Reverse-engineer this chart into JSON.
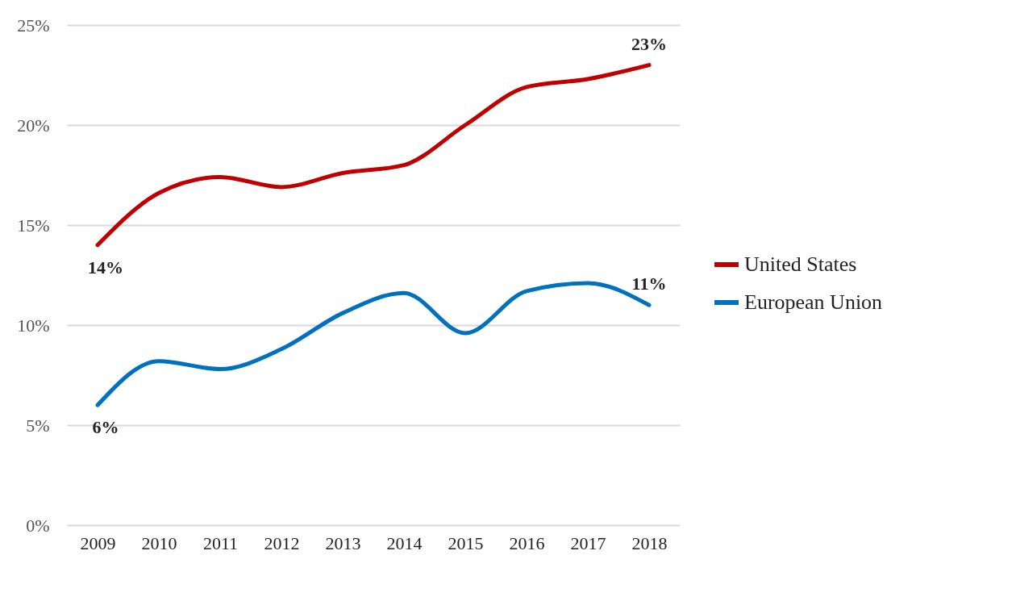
{
  "chart_data": {
    "type": "line",
    "categories": [
      "2009",
      "2010",
      "2011",
      "2012",
      "2013",
      "2014",
      "2015",
      "2016",
      "2017",
      "2018"
    ],
    "series": [
      {
        "name": "United States",
        "color": "#c00000",
        "values": [
          14,
          16.6,
          17.4,
          16.9,
          17.6,
          18.0,
          20.0,
          21.9,
          22.3,
          23
        ],
        "value_labels": [
          "14%",
          null,
          null,
          null,
          null,
          null,
          null,
          null,
          null,
          "23%"
        ]
      },
      {
        "name": "European Union",
        "color": "#0070c0",
        "values": [
          6,
          8.2,
          7.8,
          8.8,
          10.6,
          11.6,
          9.6,
          11.7,
          12.1,
          11
        ],
        "value_labels": [
          "6%",
          null,
          null,
          null,
          null,
          null,
          null,
          null,
          null,
          "11%"
        ]
      }
    ],
    "ylim": [
      0,
      25
    ],
    "yticks": [
      {
        "value": 0,
        "label": "0%"
      },
      {
        "value": 5,
        "label": "5%"
      },
      {
        "value": 10,
        "label": "10%"
      },
      {
        "value": 15,
        "label": "15%"
      },
      {
        "value": 20,
        "label": "20%"
      },
      {
        "value": 25,
        "label": "25%"
      }
    ],
    "grid": "y",
    "legend": "right",
    "marker": "none",
    "line_style": "solid"
  }
}
